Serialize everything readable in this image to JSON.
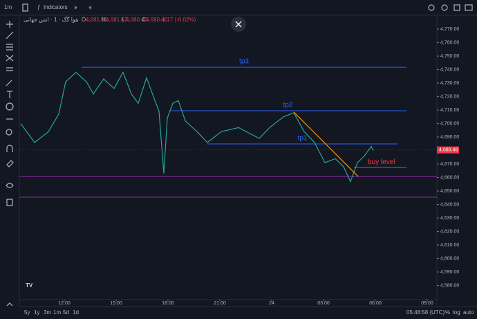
{
  "toolbar": {
    "interval": "1m",
    "indicators": "Indicators"
  },
  "legend": {
    "symbol": "هوا گگ · 1 · انس جهانی",
    "ohlc": [
      {
        "key": "O",
        "value": "4,681.51"
      },
      {
        "key": "H",
        "value": "4,681.67"
      },
      {
        "key": "L",
        "value": "4,680.46"
      },
      {
        "key": "C",
        "value": "4,680.46"
      }
    ],
    "change": "-1.17 (-0.02%)"
  },
  "chart_data": {
    "type": "line",
    "color": "#26a69a",
    "x": [
      9.48,
      10.28,
      11.08,
      11.68,
      12.08,
      12.68,
      13.28,
      13.68,
      14.28,
      14.88,
      15.4,
      15.88,
      16.28,
      16.76,
      17.16,
      17.48,
      17.76,
      17.96,
      18.28,
      18.6,
      19.0,
      19.68,
      20.28,
      21.08,
      22.08,
      23.28,
      23.88,
      24.68,
      25.28,
      25.88,
      26.48,
      27.08,
      27.68,
      28.16,
      28.56,
      28.96,
      29.36,
      29.76,
      29.88
    ],
    "values": [
      4700,
      4686,
      4694,
      4707,
      4731,
      4738,
      4731,
      4722,
      4733,
      4726,
      4738,
      4722,
      4715,
      4734,
      4720,
      4709,
      4663,
      4704,
      4715,
      4717,
      4702,
      4694,
      4686,
      4694,
      4697,
      4689,
      4697,
      4705,
      4708,
      4694,
      4686,
      4671,
      4674,
      4668,
      4657,
      4671,
      4676,
      4683,
      4680
    ],
    "xlim": [
      9.4,
      33.56
    ],
    "ylim": [
      4569.5,
      4780.3
    ],
    "xticks": [
      {
        "value": 12,
        "label": "12:00"
      },
      {
        "value": 15,
        "label": "15:00"
      },
      {
        "value": 18,
        "label": "18:00"
      },
      {
        "value": 21,
        "label": "21:00"
      },
      {
        "value": 24,
        "label": "24"
      },
      {
        "value": 27,
        "label": "03:00"
      },
      {
        "value": 30,
        "label": "06:00"
      },
      {
        "value": 33,
        "label": "09:00"
      }
    ],
    "yticks": [
      {
        "value": 4770,
        "label": "4,770.00"
      },
      {
        "value": 4760,
        "label": "4,760.00"
      },
      {
        "value": 4750,
        "label": "4,750.00"
      },
      {
        "value": 4740,
        "label": "4,740.00"
      },
      {
        "value": 4730,
        "label": "4,730.00"
      },
      {
        "value": 4720,
        "label": "4,720.00"
      },
      {
        "value": 4710,
        "label": "4,710.00"
      },
      {
        "value": 4700,
        "label": "4,700.00"
      },
      {
        "value": 4690,
        "label": "4,690.00"
      },
      {
        "value": 4670,
        "label": "4,670.00"
      },
      {
        "value": 4660,
        "label": "4,660.00"
      },
      {
        "value": 4650,
        "label": "4,650.00"
      },
      {
        "value": 4640,
        "label": "4,640.00"
      },
      {
        "value": 4630,
        "label": "4,630.00"
      },
      {
        "value": 4620,
        "label": "4,620.00"
      },
      {
        "value": 4610,
        "label": "4,610.00"
      },
      {
        "value": 4600,
        "label": "4,600.00"
      },
      {
        "value": 4590,
        "label": "4,590.00"
      },
      {
        "value": 4580,
        "label": "4,580.00"
      }
    ],
    "current": {
      "value": 4680.46,
      "label": "4,680.46",
      "color": "#f23645"
    },
    "levels": [
      {
        "name": "tp3",
        "value": 4741.8,
        "x": [
          13.0,
          31.8
        ],
        "color": "#2962ff"
      },
      {
        "name": "tp2",
        "value": 4709.5,
        "x": [
          18.08,
          31.8
        ],
        "color": "#2962ff"
      },
      {
        "name": "tp1",
        "value": 4684.9,
        "x": [
          20.28,
          31.28
        ],
        "color": "#2962ff"
      },
      {
        "name": "buy level",
        "value": 4667.4,
        "x": [
          28.76,
          31.8
        ],
        "color": "#f23645"
      },
      {
        "value": 4660.8,
        "x": [
          9.4,
          33.56
        ],
        "color": "#9c27b0"
      },
      {
        "value": 4645.4,
        "x": [
          9.4,
          33.56
        ],
        "color": "#9c27b0"
      }
    ],
    "trend": {
      "values": [
        4708.5,
        4660.8
      ],
      "x": [
        25.28,
        29.0
      ],
      "color": "#ff9800"
    }
  },
  "footer": {
    "ranges": [
      "5y",
      "1y",
      "3m",
      "1m",
      "5d",
      "1d"
    ],
    "clock": "05:48:58 (UTC)",
    "percent": "%",
    "log": "log",
    "auto": "auto"
  }
}
